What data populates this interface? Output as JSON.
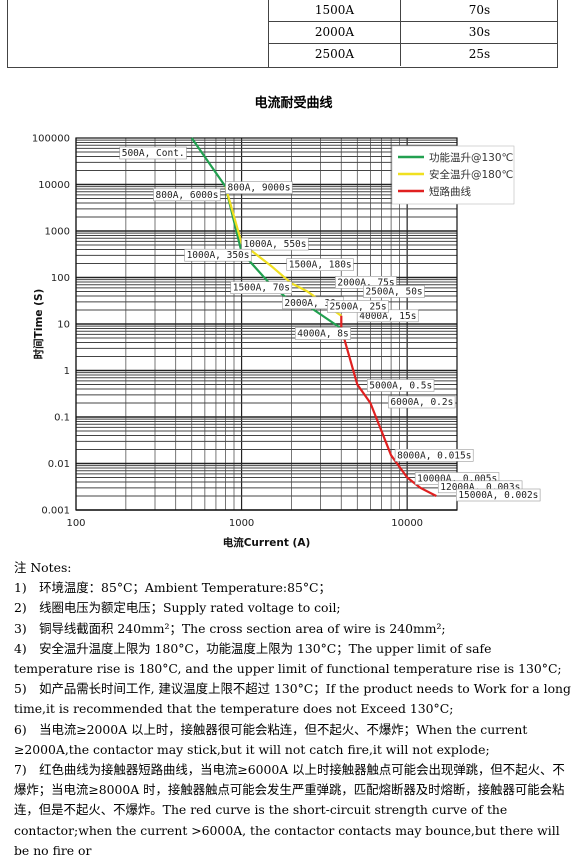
{
  "table": {
    "rows": [
      {
        "current": "1500A",
        "time": "70s"
      },
      {
        "current": "2000A",
        "time": "30s"
      },
      {
        "current": "2500A",
        "time": "25s"
      }
    ]
  },
  "chart_title": "电流耐受曲线",
  "chart_data": {
    "type": "line",
    "title": "电流耐受曲线",
    "xlabel": "电流Current (A)",
    "ylabel": "时间Time (S)",
    "x_scale": "log",
    "y_scale": "log",
    "xlim": [
      100,
      20000
    ],
    "ylim": [
      0.001,
      100000
    ],
    "x_ticks": [
      "100",
      "1000",
      "10000"
    ],
    "y_ticks": [
      "100000",
      "10000",
      "1000",
      "100",
      "10",
      "1",
      "0.1",
      "0.01",
      "0.001"
    ],
    "grid": true,
    "legend_position": "top-right",
    "series": [
      {
        "name": "功能温升@130℃",
        "color": "#22a050",
        "points": [
          [
            500,
            100000
          ],
          [
            800,
            9000
          ],
          [
            1000,
            350
          ],
          [
            1500,
            70
          ],
          [
            2000,
            30
          ],
          [
            2500,
            25
          ],
          [
            4000,
            8
          ]
        ]
      },
      {
        "name": "安全温升@180℃",
        "color": "#f0e020",
        "points": [
          [
            800,
            9000
          ],
          [
            1000,
            550
          ],
          [
            1500,
            180
          ],
          [
            2000,
            75
          ],
          [
            2500,
            50
          ],
          [
            4000,
            15
          ]
        ]
      },
      {
        "name": "短路曲线",
        "color": "#e02020",
        "points": [
          [
            4000,
            15
          ],
          [
            4000,
            8
          ],
          [
            5000,
            0.5
          ],
          [
            6000,
            0.2
          ],
          [
            8000,
            0.015
          ],
          [
            10000,
            0.005
          ],
          [
            12000,
            0.003
          ],
          [
            15000,
            0.002
          ]
        ]
      }
    ],
    "annotations": [
      {
        "text": "500A, Cont.",
        "x": 500,
        "y": 50000
      },
      {
        "text": "800A, 9000s",
        "x": 800,
        "y": 9000
      },
      {
        "text": "800A, 6000s",
        "x": 800,
        "y": 6000
      },
      {
        "text": "1000A, 550s",
        "x": 1000,
        "y": 550
      },
      {
        "text": "1500A, 180s",
        "x": 1500,
        "y": 180
      },
      {
        "text": "2000A, 75s",
        "x": 2000,
        "y": 75
      },
      {
        "text": "1000A, 350s",
        "x": 1000,
        "y": 350
      },
      {
        "text": "2500A, 50s",
        "x": 2500,
        "y": 50
      },
      {
        "text": "1500A, 70s",
        "x": 1500,
        "y": 70
      },
      {
        "text": "4000A, 15s",
        "x": 4000,
        "y": 15
      },
      {
        "text": "2000A, 30s",
        "x": 2000,
        "y": 30
      },
      {
        "text": "2500A, 25s",
        "x": 2500,
        "y": 25
      },
      {
        "text": "5000A, 0.5s",
        "x": 5000,
        "y": 0.5
      },
      {
        "text": "4000A, 8s",
        "x": 4000,
        "y": 8
      },
      {
        "text": "6000A, 0.2s",
        "x": 6000,
        "y": 0.2
      },
      {
        "text": "8000A, 0.015s",
        "x": 8000,
        "y": 0.015
      },
      {
        "text": "10000A, 0.005s",
        "x": 10000,
        "y": 0.005
      },
      {
        "text": "12000A, 0.003s",
        "x": 12000,
        "y": 0.003
      },
      {
        "text": "15000A, 0.002s",
        "x": 15000,
        "y": 0.002
      }
    ]
  },
  "notes": {
    "heading": "注 Notes:",
    "items": [
      "1)　环境温度：85°C；Ambient Temperature:85°C；",
      "2)　线圈电压为额定电压；Supply rated voltage to coil;",
      "3)　铜导线截面积 240mm²；The cross section area of wire is 240mm²;",
      "4)　安全温升温度上限为 180°C，功能温度上限为 130°C；The upper limit of safe temperature rise is 180°C, and the upper limit of functional temperature rise is 130°C;",
      "5)　如产品需长时间工作, 建议温度上限不超过 130°C；If the product needs to Work for a long time,it is recommended that the temperature does not Exceed 130°C;",
      "6)　当电流≥2000A 以上时，接触器很可能会粘连，但不起火、不爆炸；When the current ≥2000A,the contactor may stick,but it will not catch fire,it will not explode;",
      "7)　红色曲线为接触器短路曲线，当电流≥6000A 以上时接触器触点可能会出现弹跳，但不起火、不爆炸；当电流≥8000A 时，接触器触点可能会发生严重弹跳，匹配熔断器及时熔断，接触器可能会粘连，但是不起火、不爆炸。The red curve is the short-circuit strength curve of the contactor;when the current >6000A, the contactor contacts may bounce,but there will be no fire or"
    ]
  }
}
